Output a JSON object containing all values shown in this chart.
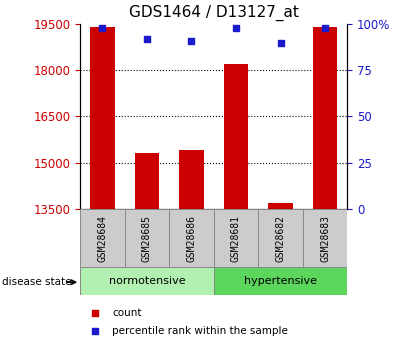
{
  "title": "GDS1464 / D13127_at",
  "samples": [
    "GSM28684",
    "GSM28685",
    "GSM28686",
    "GSM28681",
    "GSM28682",
    "GSM28683"
  ],
  "groups": [
    "normotensive",
    "hypertensive"
  ],
  "bar_values": [
    19400,
    15300,
    15400,
    18200,
    13700,
    19400
  ],
  "percentile_values": [
    98,
    92,
    91,
    98,
    90,
    98
  ],
  "y_min": 13500,
  "y_max": 19500,
  "y_ticks": [
    13500,
    15000,
    16500,
    18000,
    19500
  ],
  "y_right_ticks": [
    0,
    25,
    50,
    75,
    100
  ],
  "bar_color": "#cc0000",
  "percentile_color": "#1a1acc",
  "bar_width": 0.55,
  "grid_color": "#000000",
  "normotensive_color": "#b2f0b2",
  "hypertensive_color": "#5cd65c",
  "label_box_color": "#cccccc",
  "left_tick_color": "#cc0000",
  "right_tick_color": "#1a1acc",
  "tick_fontsize": 8.5,
  "title_fontsize": 11
}
